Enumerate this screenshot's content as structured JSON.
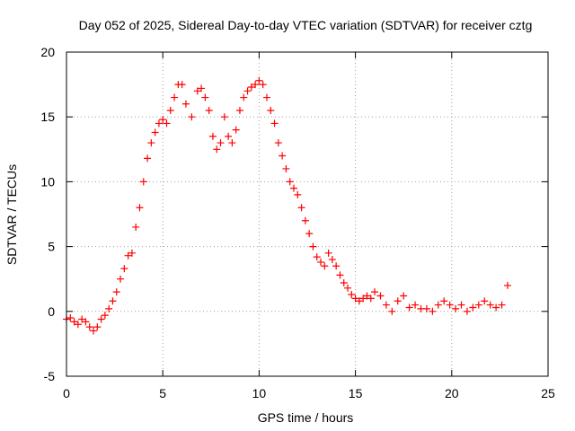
{
  "chart_data": {
    "type": "scatter",
    "title": "Day 052 of 2025, Sidereal Day-to-day VTEC variation (SDTVAR) for receiver cztg",
    "xlabel": "GPS time / hours",
    "ylabel": "SDTVAR / TECUs",
    "xlim": [
      0,
      25
    ],
    "ylim": [
      -5,
      20
    ],
    "xticks": [
      0,
      5,
      10,
      15,
      20,
      25
    ],
    "yticks": [
      -5,
      0,
      5,
      10,
      15,
      20
    ],
    "xtick_labels": [
      "0",
      "5",
      "10",
      "15",
      "20",
      "25"
    ],
    "ytick_labels": [
      "-5",
      "0",
      "5",
      "10",
      "15",
      "20"
    ],
    "grid": true,
    "marker": "+",
    "series_color": "#ff0000",
    "series": [
      {
        "name": "SDTVAR",
        "x": [
          0.0,
          0.2,
          0.4,
          0.6,
          0.8,
          1.0,
          1.2,
          1.4,
          1.6,
          1.8,
          2.0,
          2.2,
          2.4,
          2.6,
          2.8,
          3.0,
          3.2,
          3.4,
          3.6,
          3.8,
          4.0,
          4.2,
          4.4,
          4.6,
          4.8,
          5.0,
          5.2,
          5.4,
          5.6,
          5.8,
          6.0,
          6.2,
          6.5,
          6.8,
          7.0,
          7.2,
          7.4,
          7.6,
          7.8,
          8.0,
          8.2,
          8.4,
          8.6,
          8.8,
          9.0,
          9.2,
          9.4,
          9.6,
          9.8,
          10.0,
          10.2,
          10.4,
          10.6,
          10.8,
          11.0,
          11.2,
          11.4,
          11.6,
          11.8,
          12.0,
          12.2,
          12.4,
          12.6,
          12.8,
          13.0,
          13.2,
          13.4,
          13.6,
          13.8,
          14.0,
          14.2,
          14.4,
          14.6,
          14.8,
          15.0,
          15.2,
          15.4,
          15.6,
          15.8,
          16.0,
          16.3,
          16.6,
          16.9,
          17.2,
          17.5,
          17.8,
          18.1,
          18.4,
          18.7,
          19.0,
          19.3,
          19.6,
          19.9,
          20.2,
          20.5,
          20.8,
          21.1,
          21.4,
          21.7,
          22.0,
          22.3,
          22.6,
          22.9
        ],
        "y": [
          -0.6,
          -0.5,
          -0.8,
          -1.0,
          -0.6,
          -0.8,
          -1.2,
          -1.5,
          -1.2,
          -0.6,
          -0.3,
          0.2,
          0.8,
          1.5,
          2.5,
          3.3,
          4.3,
          4.5,
          6.5,
          8.0,
          10.0,
          11.8,
          13.0,
          13.8,
          14.5,
          14.8,
          14.5,
          15.5,
          16.5,
          17.5,
          17.5,
          16.0,
          15.0,
          17.0,
          17.2,
          16.5,
          15.5,
          13.5,
          12.5,
          13.0,
          15.0,
          13.5,
          13.0,
          14.0,
          15.5,
          16.5,
          17.0,
          17.3,
          17.5,
          17.8,
          17.5,
          16.5,
          15.5,
          14.5,
          13.0,
          12.0,
          11.0,
          10.0,
          9.5,
          9.0,
          8.0,
          7.0,
          6.0,
          5.0,
          4.2,
          3.8,
          3.5,
          4.5,
          4.0,
          3.5,
          2.8,
          2.2,
          1.8,
          1.3,
          1.0,
          0.8,
          1.0,
          1.2,
          1.0,
          1.5,
          1.2,
          0.5,
          0.0,
          0.8,
          1.2,
          0.3,
          0.5,
          0.2,
          0.2,
          0.0,
          0.5,
          0.8,
          0.5,
          0.2,
          0.5,
          0.0,
          0.3,
          0.5,
          0.8,
          0.5,
          0.3,
          0.5,
          2.0
        ]
      }
    ]
  }
}
